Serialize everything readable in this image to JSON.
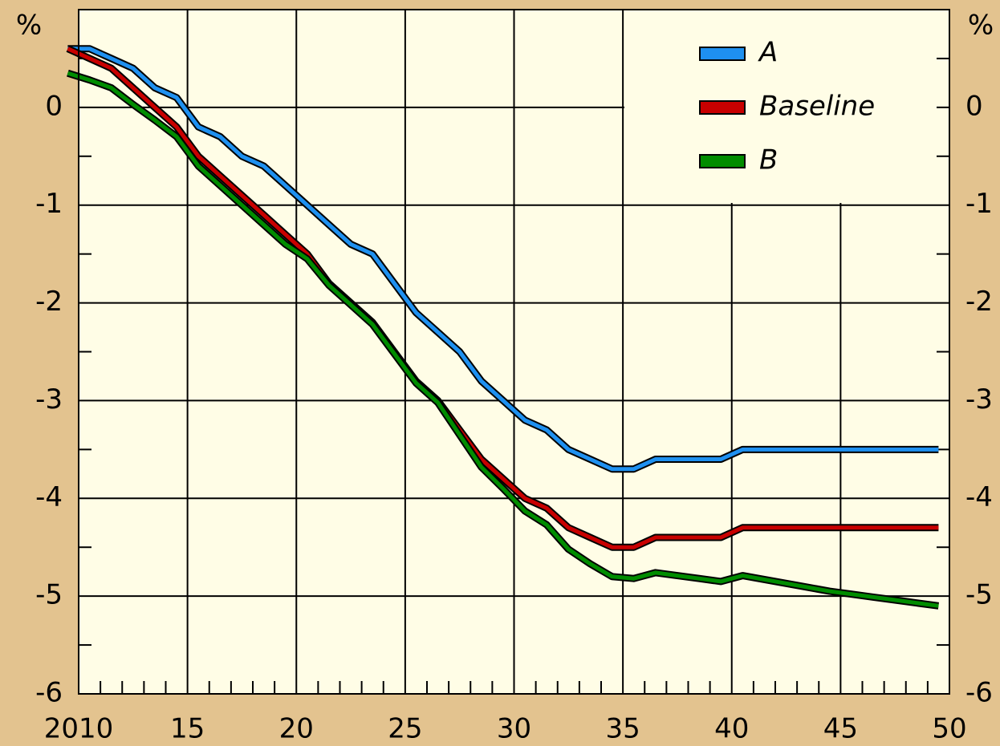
{
  "chart_data": {
    "type": "line",
    "unit_label": "%",
    "x": [
      2009.5,
      2010.5,
      2011.5,
      2012.5,
      2013.5,
      2014.5,
      2015.5,
      2016.5,
      2017.5,
      2018.5,
      2019.5,
      2020.5,
      2021.5,
      2022.5,
      2023.5,
      2024.5,
      2025.5,
      2026.5,
      2027.5,
      2028.5,
      2029.5,
      2030.5,
      2031.5,
      2032.5,
      2033.5,
      2034.5,
      2035.5,
      2036.5,
      2037.5,
      2038.5,
      2039.5,
      2040.5,
      2041.5,
      2042.5,
      2043.5,
      2044.5,
      2045.5,
      2046.5,
      2047.5,
      2048.5,
      2049.5
    ],
    "series": [
      {
        "name": "A",
        "color": "#1e90f0",
        "values": [
          0.6,
          0.6,
          0.5,
          0.4,
          0.2,
          0.1,
          -0.2,
          -0.3,
          -0.5,
          -0.6,
          -0.8,
          -1.0,
          -1.2,
          -1.4,
          -1.5,
          -1.8,
          -2.1,
          -2.3,
          -2.5,
          -2.8,
          -3.0,
          -3.2,
          -3.3,
          -3.5,
          -3.6,
          -3.7,
          -3.7,
          -3.6,
          -3.6,
          -3.6,
          -3.6,
          -3.5,
          -3.5,
          -3.5,
          -3.5,
          -3.5,
          -3.5,
          -3.5,
          -3.5,
          -3.5,
          -3.5
        ]
      },
      {
        "name": "Baseline",
        "color": "#c80000",
        "values": [
          0.6,
          0.5,
          0.4,
          0.2,
          0.0,
          -0.2,
          -0.5,
          -0.7,
          -0.9,
          -1.1,
          -1.3,
          -1.5,
          -1.8,
          -2.0,
          -2.2,
          -2.5,
          -2.8,
          -3.0,
          -3.3,
          -3.6,
          -3.8,
          -4.0,
          -4.1,
          -4.3,
          -4.4,
          -4.5,
          -4.5,
          -4.4,
          -4.4,
          -4.4,
          -4.4,
          -4.3,
          -4.3,
          -4.3,
          -4.3,
          -4.3,
          -4.3,
          -4.3,
          -4.3,
          -4.3,
          -4.3
        ]
      },
      {
        "name": "B",
        "color": "#008c00",
        "values": [
          0.35,
          0.28,
          0.2,
          0.03,
          -0.13,
          -0.3,
          -0.6,
          -0.8,
          -1.0,
          -1.2,
          -1.4,
          -1.55,
          -1.82,
          -2.02,
          -2.22,
          -2.52,
          -2.82,
          -3.02,
          -3.35,
          -3.68,
          -3.9,
          -4.13,
          -4.27,
          -4.52,
          -4.67,
          -4.8,
          -4.82,
          -4.76,
          -4.79,
          -4.82,
          -4.85,
          -4.79,
          -4.83,
          -4.87,
          -4.91,
          -4.95,
          -4.98,
          -5.01,
          -5.04,
          -5.07,
          -5.1
        ]
      }
    ],
    "xlim": [
      2010,
      2050
    ],
    "xticks": [
      {
        "value": 2010,
        "label": "2010"
      },
      {
        "value": 2015,
        "label": "15"
      },
      {
        "value": 2020,
        "label": "20"
      },
      {
        "value": 2025,
        "label": "25"
      },
      {
        "value": 2030,
        "label": "30"
      },
      {
        "value": 2035,
        "label": "35"
      },
      {
        "value": 2040,
        "label": "40"
      },
      {
        "value": 2045,
        "label": "45"
      },
      {
        "value": 2050,
        "label": "50"
      }
    ],
    "xminorticks": [
      2011,
      2012,
      2013,
      2014,
      2016,
      2017,
      2018,
      2019,
      2021,
      2022,
      2023,
      2024,
      2026,
      2027,
      2028,
      2029,
      2031,
      2032,
      2033,
      2034,
      2036,
      2037,
      2038,
      2039,
      2041,
      2042,
      2043,
      2044,
      2046,
      2047,
      2048,
      2049
    ],
    "ylim": [
      -6,
      1
    ],
    "yticks": [
      -6,
      -5,
      -4,
      -3,
      -2,
      -1,
      0
    ],
    "yminorticks": [
      -5.5,
      -4.5,
      -3.5,
      -2.5,
      -1.5,
      -0.5,
      0.5
    ],
    "grid": true,
    "legend": "top-right"
  }
}
